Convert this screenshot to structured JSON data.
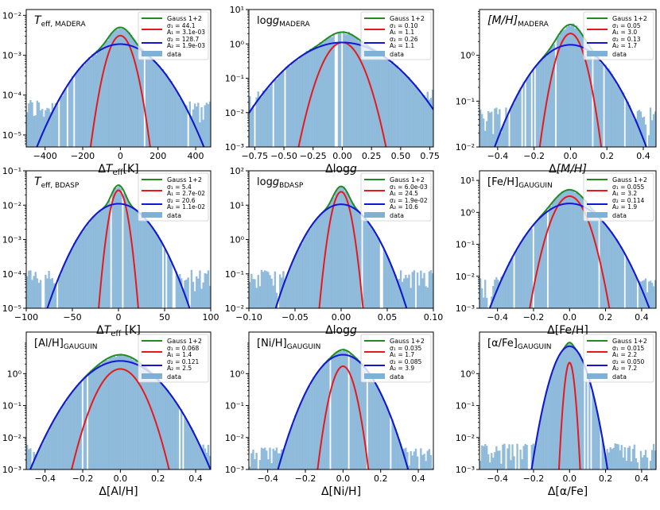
{
  "legend_labels": {
    "total": "Gauss 1+2",
    "data": "data"
  },
  "colors": {
    "total": "#228B22",
    "g1": "#E41A1C",
    "g2": "#1515D8",
    "hist": "#7FB0D6"
  },
  "chart_data": [
    {
      "type": "bar",
      "title": "T_eff, MADERA",
      "title_main": "T",
      "title_sub": "eff, MADERA",
      "title_style": "italic-sub",
      "xlabel": "ΔT_eff[K]",
      "xlabel_main": "ΔT",
      "xlabel_sub": "eff",
      "xlabel_suffix": "[K]",
      "xlabel_style": "math",
      "xlim": [
        -500,
        480
      ],
      "xticks": [
        -400,
        -200,
        0,
        200,
        400
      ],
      "xticklabels": [
        "−400",
        "−200",
        "0",
        "200",
        "400"
      ],
      "ylog": true,
      "ylim": [
        5e-06,
        0.014
      ],
      "yticks": [
        1e-05,
        0.0001,
        0.001,
        0.01
      ],
      "yticklabels": [
        "10⁻⁵",
        "10⁻⁴",
        "10⁻³",
        "10⁻²"
      ],
      "g1": {
        "sigma": 44.1,
        "A": 0.0031
      },
      "g2": {
        "sigma": 128.7,
        "A": 0.0019
      },
      "mu": 0,
      "legend_g1": [
        "σ₁ = 44.1",
        "A₁ = 3.1e-03"
      ],
      "legend_g2": [
        "σ₂ = 128.7",
        "A₂ = 1.9e-03"
      ],
      "hist_floor": 5e-05
    },
    {
      "type": "bar",
      "title": "logg_MADERA",
      "title_main": "log",
      "title_main2": "g",
      "title_sub": "MADERA",
      "title_style": "logg",
      "xlabel": "Δlogg",
      "xlabel_main": "Δlog",
      "xlabel_g": "g",
      "xlabel_style": "logg",
      "xlim": [
        -0.8,
        0.78
      ],
      "xticks": [
        -0.75,
        -0.5,
        -0.25,
        0,
        0.25,
        0.5,
        0.75
      ],
      "xticklabels": [
        "−0.75",
        "−0.50",
        "−0.25",
        "0.00",
        "0.25",
        "0.50",
        "0.75"
      ],
      "ylog": true,
      "ylim": [
        0.001,
        10
      ],
      "yticks": [
        0.001,
        0.01,
        0.1,
        1,
        10
      ],
      "yticklabels": [
        "10⁻³",
        "10⁻²",
        "10⁻¹",
        "10⁰",
        "10¹"
      ],
      "g1": {
        "sigma": 0.1,
        "A": 1.1
      },
      "g2": {
        "sigma": 0.26,
        "A": 1.1
      },
      "mu": 0,
      "legend_g1": [
        "σ₁ = 0.10",
        "A₁ = 1.1"
      ],
      "legend_g2": [
        "σ₂ = 0.26",
        "A₂ = 1.1"
      ],
      "hist_floor": 0.03
    },
    {
      "type": "bar",
      "title": "[M/H]_MADERA",
      "title_main": "[M/H]",
      "title_sub": "MADERA",
      "title_style": "italic-sub",
      "xlabel": "Δ[M/H]",
      "xlabel_main": "Δ[M/H]",
      "xlabel_style": "math-plain",
      "xlim": [
        -0.5,
        0.47
      ],
      "xticks": [
        -0.4,
        -0.2,
        0,
        0.2,
        0.4
      ],
      "xticklabels": [
        "−0.4",
        "−0.2",
        "0.0",
        "0.2",
        "0.4"
      ],
      "ylog": true,
      "ylim": [
        0.01,
        10
      ],
      "yticks": [
        0.01,
        0.1,
        1
      ],
      "yticklabels": [
        "10⁻²",
        "10⁻¹",
        "10⁰"
      ],
      "g1": {
        "sigma": 0.05,
        "A": 3.0
      },
      "g2": {
        "sigma": 0.13,
        "A": 1.7
      },
      "mu": 0,
      "legend_g1": [
        "σ₁ = 0.05",
        "A₁ = 3.0"
      ],
      "legend_g2": [
        "σ₂ = 0.13",
        "A₂ = 1.7"
      ],
      "hist_floor": 0.05
    },
    {
      "type": "bar",
      "title": "T_eff, BDASP",
      "title_main": "T",
      "title_sub": "eff, BDASP",
      "title_style": "italic-sub",
      "xlabel": "ΔT_eff [K]",
      "xlabel_main": "ΔT",
      "xlabel_sub": "eff",
      "xlabel_suffix": " [K]",
      "xlabel_style": "math",
      "xlim": [
        -100,
        100
      ],
      "xticks": [
        -100,
        -50,
        0,
        50,
        100
      ],
      "xticklabels": [
        "−100",
        "−50",
        "0",
        "50",
        "100"
      ],
      "ylog": true,
      "ylim": [
        1e-05,
        0.1
      ],
      "yticks": [
        1e-05,
        0.0001,
        0.001,
        0.01,
        0.1
      ],
      "yticklabels": [
        "10⁻⁵",
        "10⁻⁴",
        "10⁻³",
        "10⁻²",
        "10⁻¹"
      ],
      "g1": {
        "sigma": 5.4,
        "A": 0.027
      },
      "g2": {
        "sigma": 20.6,
        "A": 0.011
      },
      "mu": 0,
      "legend_g1": [
        "σ₁ = 5.4",
        "A₁ = 2.7e-02"
      ],
      "legend_g2": [
        "σ₂ = 20.6",
        "A₂ = 1.1e-02"
      ],
      "hist_floor": 8e-05
    },
    {
      "type": "bar",
      "title": "logg_BDASP",
      "title_main": "log",
      "title_main2": "g",
      "title_sub": "BDASP",
      "title_style": "logg",
      "xlabel": "Δlogg",
      "xlabel_main": "Δlog",
      "xlabel_g": "g",
      "xlabel_style": "logg",
      "xlim": [
        -0.1,
        0.1
      ],
      "xticks": [
        -0.1,
        -0.05,
        0,
        0.05,
        0.1
      ],
      "xticklabels": [
        "−0.10",
        "−0.05",
        "0.00",
        "0.05",
        "0.10"
      ],
      "ylog": true,
      "ylim": [
        0.01,
        100
      ],
      "yticks": [
        0.01,
        0.1,
        1,
        10,
        100
      ],
      "yticklabels": [
        "10⁻²",
        "10⁻¹",
        "10⁰",
        "10¹",
        "10²"
      ],
      "g1": {
        "sigma": 0.006,
        "A": 24.5
      },
      "g2": {
        "sigma": 0.019,
        "A": 10.6
      },
      "mu": 0,
      "legend_g1": [
        "σ₁ = 6.0e-03",
        "A₁ = 24.5"
      ],
      "legend_g2": [
        "σ₂ = 1.9e-02",
        "A₂ = 10.6"
      ],
      "hist_floor": 0.08
    },
    {
      "type": "bar",
      "title": "[Fe/H]_GAUGUIN",
      "title_main": "[Fe/H]",
      "title_sub": "GAUGUIN",
      "title_style": "roman-sub",
      "xlabel": "Δ[Fe/H]",
      "xlabel_main": "Δ[Fe/H]",
      "xlabel_style": "plain",
      "xlim": [
        -0.5,
        0.48
      ],
      "xticks": [
        -0.4,
        -0.2,
        0,
        0.2,
        0.4
      ],
      "xticklabels": [
        "−0.4",
        "−0.2",
        "0.0",
        "0.2",
        "0.4"
      ],
      "ylog": true,
      "ylim": [
        0.001,
        20
      ],
      "yticks": [
        0.001,
        0.01,
        0.1,
        1,
        10
      ],
      "yticklabels": [
        "10⁻³",
        "10⁻²",
        "10⁻¹",
        "10⁰",
        "10¹"
      ],
      "g1": {
        "sigma": 0.055,
        "A": 3.2
      },
      "g2": {
        "sigma": 0.114,
        "A": 1.9
      },
      "mu": 0,
      "legend_g1": [
        "σ₁ = 0.055",
        "A₁ = 3.2"
      ],
      "legend_g2": [
        "σ₂ = 0.114",
        "A₂ = 1.9"
      ],
      "hist_floor": 0.006
    },
    {
      "type": "bar",
      "title": "[Al/H]_GAUGUIN",
      "title_main": "[Al/H]",
      "title_sub": "GAUGUIN",
      "title_style": "roman-sub",
      "xlabel": "Δ[Al/H]",
      "xlabel_main": "Δ[Al/H]",
      "xlabel_style": "plain",
      "xlim": [
        -0.5,
        0.48
      ],
      "xticks": [
        -0.4,
        -0.2,
        0,
        0.2,
        0.4
      ],
      "xticklabels": [
        "−0.4",
        "−0.2",
        "0.0",
        "0.2",
        "0.4"
      ],
      "ylog": true,
      "ylim": [
        0.001,
        20
      ],
      "yticks": [
        0.001,
        0.01,
        0.1,
        1
      ],
      "yticklabels": [
        "10⁻³",
        "10⁻²",
        "10⁻¹",
        "10⁰"
      ],
      "g1": {
        "sigma": 0.068,
        "A": 1.4
      },
      "g2": {
        "sigma": 0.121,
        "A": 2.5
      },
      "mu": 0,
      "legend_g1": [
        "σ₁ = 0.068",
        "A₁ = 1.4"
      ],
      "legend_g2": [
        "σ₂ = 0.121",
        "A₂ = 2.5"
      ],
      "hist_floor": 0.004
    },
    {
      "type": "bar",
      "title": "[Ni/H]_GAUGUIN",
      "title_main": "[Ni/H]",
      "title_sub": "GAUGUIN",
      "title_style": "roman-sub",
      "xlabel": "Δ[Ni/H]",
      "xlabel_main": "Δ[Ni/H]",
      "xlabel_style": "plain",
      "xlim": [
        -0.5,
        0.48
      ],
      "xticks": [
        -0.4,
        -0.2,
        0,
        0.2,
        0.4
      ],
      "xticklabels": [
        "−0.4",
        "−0.2",
        "0.0",
        "0.2",
        "0.4"
      ],
      "ylog": true,
      "ylim": [
        0.001,
        20
      ],
      "yticks": [
        0.001,
        0.01,
        0.1,
        1
      ],
      "yticklabels": [
        "10⁻³",
        "10⁻²",
        "10⁻¹",
        "10⁰"
      ],
      "g1": {
        "sigma": 0.035,
        "A": 1.7
      },
      "g2": {
        "sigma": 0.085,
        "A": 3.9
      },
      "mu": 0,
      "legend_g1": [
        "σ₁ = 0.035",
        "A₁ = 1.7"
      ],
      "legend_g2": [
        "σ₂ = 0.085",
        "A₂ = 3.9"
      ],
      "hist_floor": 0.003
    },
    {
      "type": "bar",
      "title": "[α/Fe]_GAUGUIN",
      "title_main": "[α/Fe]",
      "title_sub": "GAUGUIN",
      "title_style": "roman-sub",
      "xlabel": "Δ[α/Fe]",
      "xlabel_main": "Δ[α/Fe]",
      "xlabel_style": "plain",
      "xlim": [
        -0.5,
        0.48
      ],
      "xticks": [
        -0.4,
        -0.2,
        0,
        0.2,
        0.4
      ],
      "xticklabels": [
        "−0.4",
        "−0.2",
        "0.0",
        "0.2",
        "0.4"
      ],
      "ylog": true,
      "ylim": [
        0.001,
        20
      ],
      "yticks": [
        0.001,
        0.01,
        0.1,
        1
      ],
      "yticklabels": [
        "10⁻³",
        "10⁻²",
        "10⁻¹",
        "10⁰"
      ],
      "g1": {
        "sigma": 0.015,
        "A": 2.2
      },
      "g2": {
        "sigma": 0.05,
        "A": 7.2
      },
      "mu": 0,
      "legend_g1": [
        "σ₁ = 0.015",
        "A₁ = 2.2"
      ],
      "legend_g2": [
        "σ₂ = 0.050",
        "A₂ = 7.2"
      ],
      "hist_floor": 0.004
    }
  ]
}
